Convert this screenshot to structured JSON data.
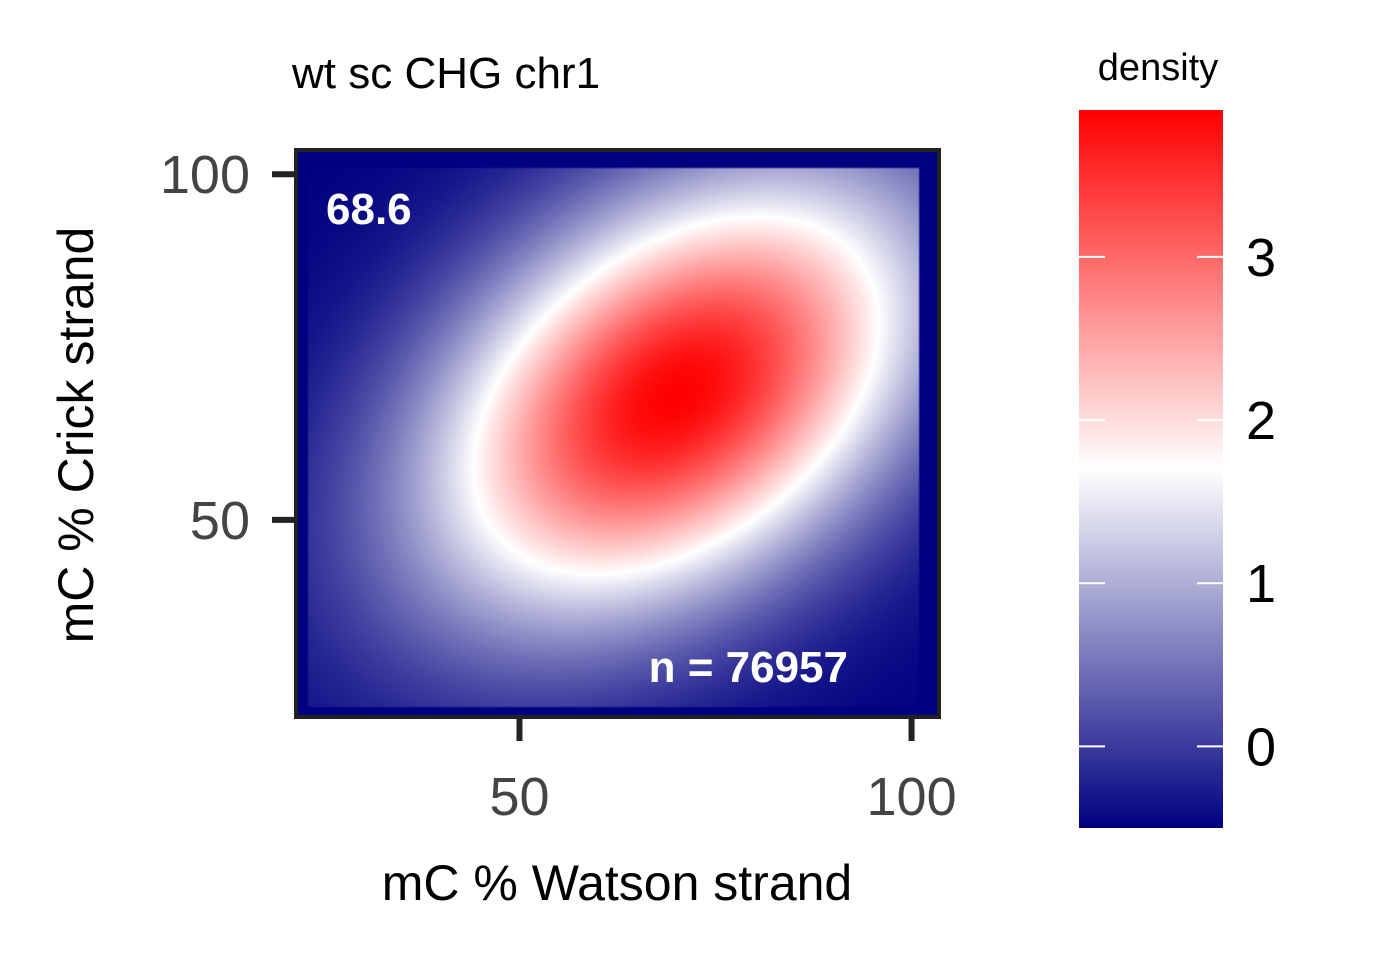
{
  "chart_data": {
    "type": "heatmap",
    "title": "wt sc CHG chr1",
    "xlabel": "mC % Watson strand",
    "ylabel": "mC % Crick strand",
    "xlim": [
      21.5,
      103.5
    ],
    "ylim": [
      21.5,
      103.5
    ],
    "x_ticks": [
      50,
      100
    ],
    "y_ticks": [
      50,
      100
    ],
    "annotations": {
      "corner_value": "68.6",
      "count": "n = 76957"
    },
    "density": {
      "peak": [
        70,
        68
      ],
      "peak_density": 3.9,
      "spread_major": 26,
      "spread_minor": 17,
      "orientation_deg": 45
    },
    "colorbar": {
      "title": "density",
      "min": -0.5,
      "max": 3.9,
      "ticks": [
        0,
        1,
        2,
        3
      ],
      "tick_labels": [
        "0",
        "1",
        "2",
        "3"
      ],
      "colors": {
        "low": "#000080",
        "mid": "#ffffff",
        "high": "#ff0000"
      },
      "mid_value": 1.7
    },
    "legend_position": "right",
    "grid": false
  }
}
